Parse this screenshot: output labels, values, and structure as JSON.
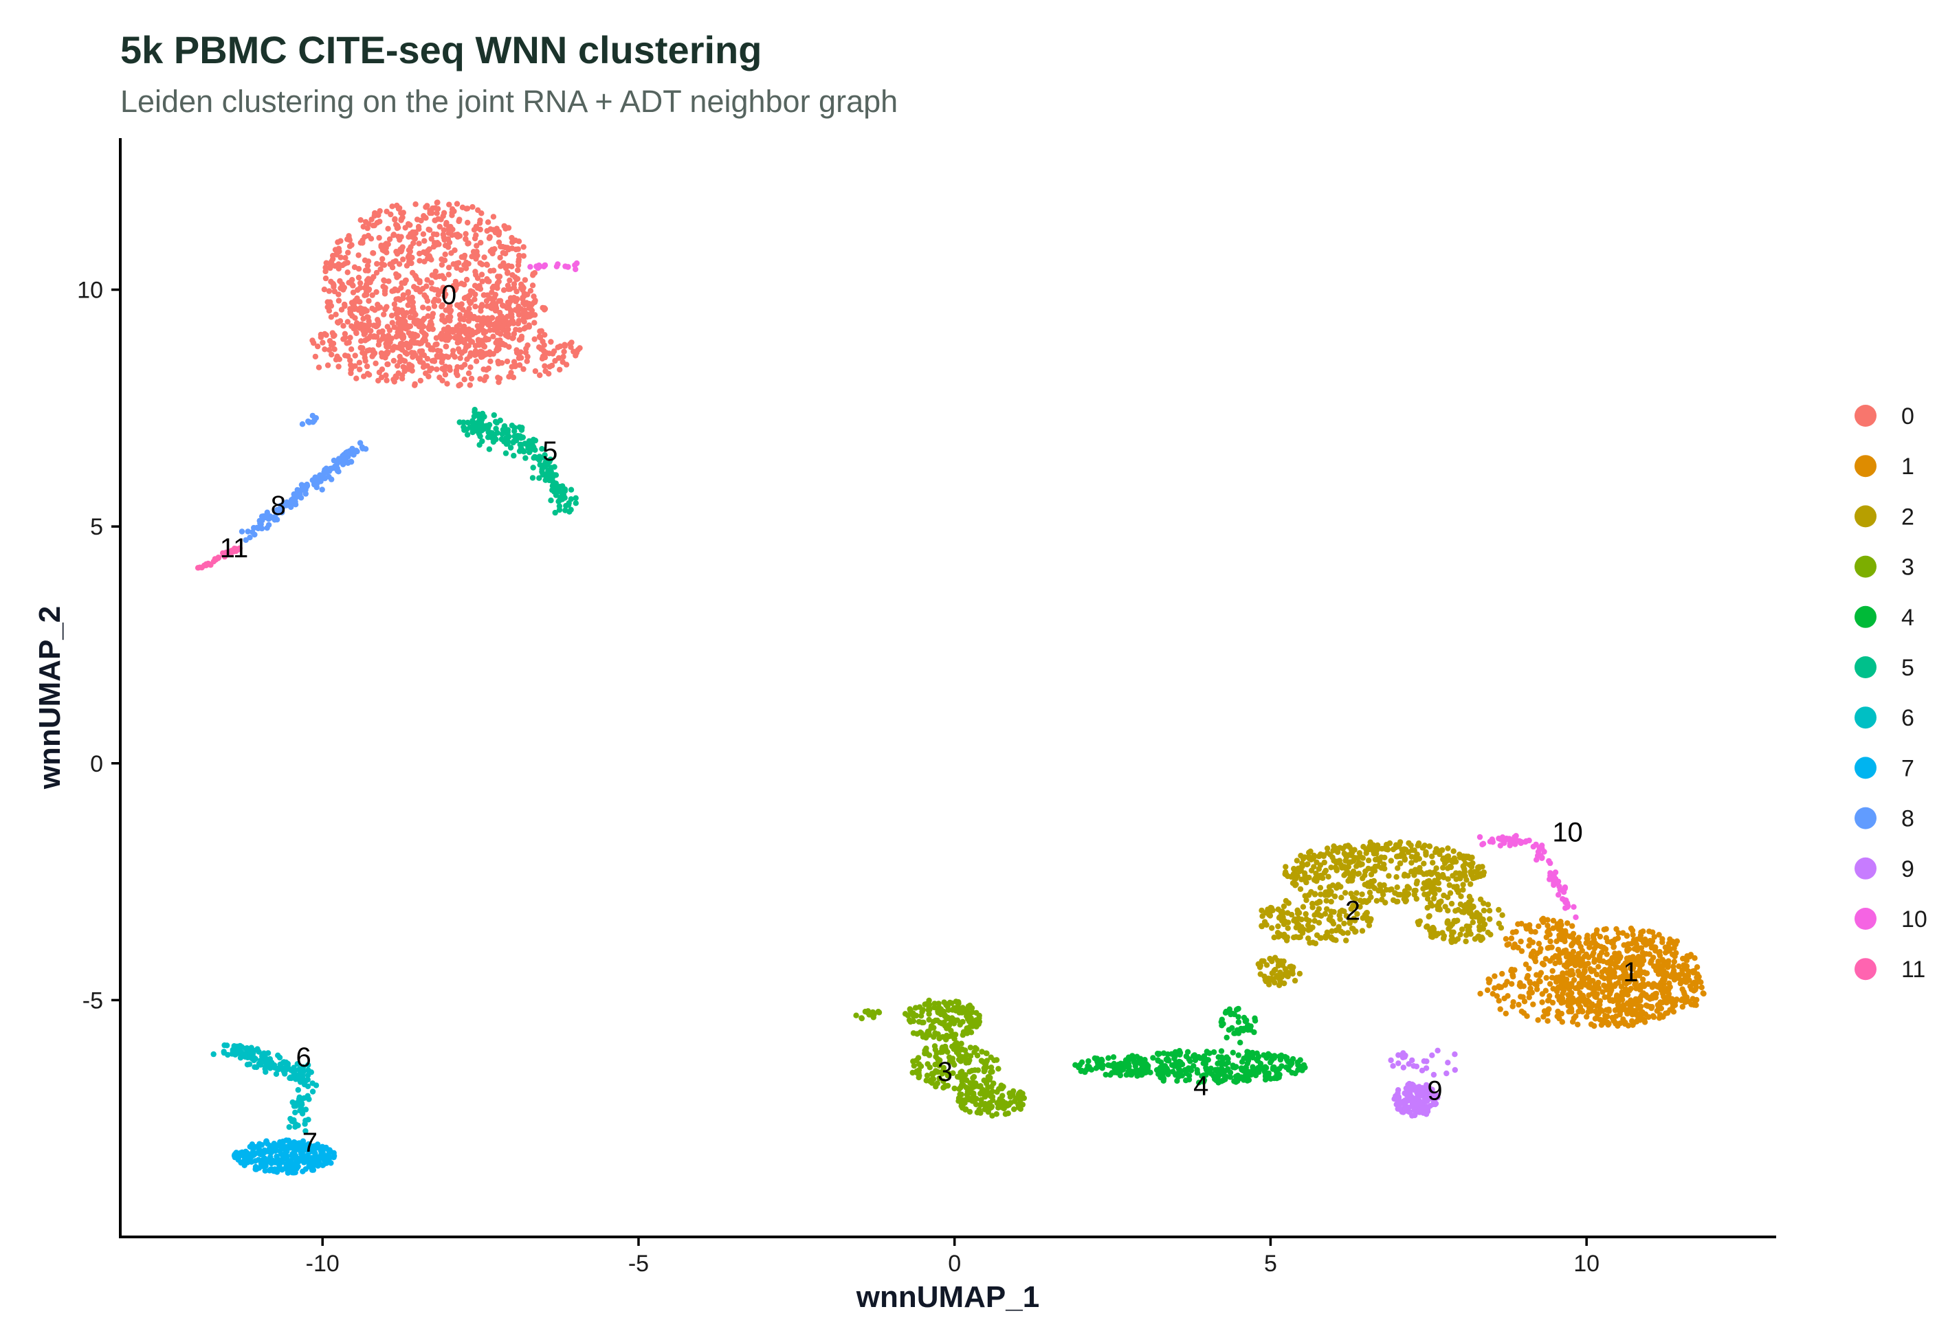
{
  "chart_data": {
    "type": "scatter",
    "title": "5k PBMC CITE-seq WNN clustering",
    "subtitle": "Leiden clustering on the joint RNA + ADT neighbor graph",
    "xlabel": "wnnUMAP_1",
    "ylabel": "wnnUMAP_2",
    "xlim": [
      -13.2,
      13.0
    ],
    "ylim": [
      -10.0,
      13.2
    ],
    "x_ticks": [
      -10,
      -5,
      0,
      5,
      10
    ],
    "x_tick_labels": [
      "-10",
      "-5",
      "0",
      "5",
      "10"
    ],
    "y_ticks": [
      -5,
      0,
      5,
      10
    ],
    "y_tick_labels": [
      "-5",
      "0",
      "5",
      "10"
    ],
    "grid": false,
    "legend_position": "right",
    "legend": [
      "0",
      "1",
      "2",
      "3",
      "4",
      "5",
      "6",
      "7",
      "8",
      "9",
      "10",
      "11"
    ],
    "series": [
      {
        "name": "0",
        "color": "#F8766D",
        "label_pos": [
          -8.0,
          9.9
        ],
        "regions": [
          {
            "shape": "ellipse",
            "cx": -8.3,
            "cy": 10.1,
            "rx": 1.7,
            "ry": 1.8,
            "n": 850
          },
          {
            "shape": "ellipse",
            "cx": -8.1,
            "cy": 8.7,
            "rx": 2.2,
            "ry": 0.75,
            "n": 350
          },
          {
            "shape": "ellipse",
            "cx": -7.0,
            "cy": 9.4,
            "rx": 0.6,
            "ry": 0.45,
            "n": 70
          }
        ]
      },
      {
        "name": "1",
        "color": "#DE8C00",
        "label_pos": [
          10.7,
          -4.4
        ],
        "regions": [
          {
            "shape": "ellipse",
            "cx": 10.6,
            "cy": -4.5,
            "rx": 1.2,
            "ry": 1.05,
            "n": 500
          },
          {
            "shape": "ellipse",
            "cx": 10.1,
            "cy": -4.8,
            "rx": 1.8,
            "ry": 0.75,
            "n": 320
          },
          {
            "shape": "ellipse",
            "cx": 9.3,
            "cy": -3.7,
            "rx": 0.6,
            "ry": 0.45,
            "n": 80
          }
        ]
      },
      {
        "name": "2",
        "color": "#B79F00",
        "label_pos": [
          6.3,
          -3.1
        ],
        "regions": [
          {
            "shape": "ellipse",
            "cx": 6.8,
            "cy": -2.3,
            "rx": 1.6,
            "ry": 0.65,
            "n": 420
          },
          {
            "shape": "ellipse",
            "cx": 5.7,
            "cy": -3.3,
            "rx": 0.9,
            "ry": 0.55,
            "n": 160
          },
          {
            "shape": "ellipse",
            "cx": 8.0,
            "cy": -3.3,
            "rx": 0.7,
            "ry": 0.5,
            "n": 120
          },
          {
            "shape": "ellipse",
            "cx": 5.1,
            "cy": -4.4,
            "rx": 0.4,
            "ry": 0.3,
            "n": 50
          }
        ]
      },
      {
        "name": "3",
        "color": "#7CAE00",
        "label_pos": [
          -0.15,
          -6.5
        ],
        "regions": [
          {
            "shape": "ellipse",
            "cx": -0.2,
            "cy": -5.4,
            "rx": 0.6,
            "ry": 0.45,
            "n": 150
          },
          {
            "shape": "ellipse",
            "cx": 0.0,
            "cy": -6.4,
            "rx": 0.7,
            "ry": 0.5,
            "n": 150
          },
          {
            "shape": "ellipse",
            "cx": 0.6,
            "cy": -7.1,
            "rx": 0.55,
            "ry": 0.35,
            "n": 120
          },
          {
            "shape": "ellipse",
            "cx": -1.4,
            "cy": -5.3,
            "rx": 0.25,
            "ry": 0.1,
            "n": 15
          }
        ]
      },
      {
        "name": "4",
        "color": "#00BA38",
        "label_pos": [
          3.9,
          -6.8
        ],
        "regions": [
          {
            "shape": "ellipse",
            "cx": 4.0,
            "cy": -6.4,
            "rx": 1.6,
            "ry": 0.35,
            "n": 320
          },
          {
            "shape": "ellipse",
            "cx": 2.5,
            "cy": -6.4,
            "rx": 0.6,
            "ry": 0.2,
            "n": 60
          },
          {
            "shape": "ellipse",
            "cx": 4.5,
            "cy": -5.5,
            "rx": 0.3,
            "ry": 0.4,
            "n": 40
          }
        ]
      },
      {
        "name": "5",
        "color": "#00C08B",
        "label_pos": [
          -6.4,
          6.6
        ],
        "regions": [
          {
            "shape": "segment",
            "x1": -7.7,
            "y1": 7.2,
            "x2": -6.8,
            "y2": 6.8,
            "spread": 0.3,
            "n": 100
          },
          {
            "shape": "segment",
            "x1": -6.8,
            "y1": 6.8,
            "x2": -6.1,
            "y2": 5.4,
            "spread": 0.2,
            "n": 100
          }
        ]
      },
      {
        "name": "6",
        "color": "#00BFC4",
        "label_pos": [
          -10.3,
          -6.2
        ],
        "regions": [
          {
            "shape": "segment",
            "x1": -11.5,
            "y1": -6.0,
            "x2": -10.3,
            "y2": -6.6,
            "spread": 0.2,
            "n": 130
          },
          {
            "shape": "segment",
            "x1": -10.3,
            "y1": -6.6,
            "x2": -10.4,
            "y2": -7.8,
            "spread": 0.15,
            "n": 50
          }
        ]
      },
      {
        "name": "7",
        "color": "#00B4F0",
        "label_pos": [
          -10.2,
          -8.0
        ],
        "regions": [
          {
            "shape": "ellipse",
            "cx": -10.6,
            "cy": -8.3,
            "rx": 0.8,
            "ry": 0.35,
            "n": 260
          }
        ]
      },
      {
        "name": "8",
        "color": "#619CFF",
        "label_pos": [
          -10.7,
          5.45
        ],
        "regions": [
          {
            "shape": "segment",
            "x1": -11.2,
            "y1": 4.8,
            "x2": -9.4,
            "y2": 6.7,
            "spread": 0.12,
            "n": 150
          },
          {
            "shape": "segment",
            "x1": -10.3,
            "y1": 7.2,
            "x2": -10.1,
            "y2": 7.3,
            "spread": 0.08,
            "n": 8
          }
        ]
      },
      {
        "name": "9",
        "color": "#C77CFF",
        "label_pos": [
          7.6,
          -6.9
        ],
        "regions": [
          {
            "shape": "ellipse",
            "cx": 7.3,
            "cy": -7.1,
            "rx": 0.35,
            "ry": 0.35,
            "n": 150
          },
          {
            "shape": "ellipse",
            "cx": 7.5,
            "cy": -6.3,
            "rx": 0.6,
            "ry": 0.3,
            "n": 25
          }
        ]
      },
      {
        "name": "10",
        "color": "#F564E3",
        "label_pos": [
          9.7,
          -1.45
        ],
        "regions": [
          {
            "shape": "segment",
            "x1": 8.3,
            "y1": -1.6,
            "x2": 9.2,
            "y2": -1.7,
            "spread": 0.12,
            "n": 35
          },
          {
            "shape": "segment",
            "x1": 9.2,
            "y1": -1.7,
            "x2": 9.8,
            "y2": -3.2,
            "spread": 0.12,
            "n": 45
          },
          {
            "shape": "segment",
            "x1": -6.7,
            "y1": 10.5,
            "x2": -5.9,
            "y2": 10.5,
            "spread": 0.05,
            "n": 18
          }
        ]
      },
      {
        "name": "11",
        "color": "#FF64B0",
        "label_pos": [
          -11.4,
          4.55
        ],
        "regions": [
          {
            "shape": "segment",
            "x1": -12.0,
            "y1": 4.1,
            "x2": -11.3,
            "y2": 4.55,
            "spread": 0.05,
            "n": 35
          }
        ]
      }
    ]
  }
}
